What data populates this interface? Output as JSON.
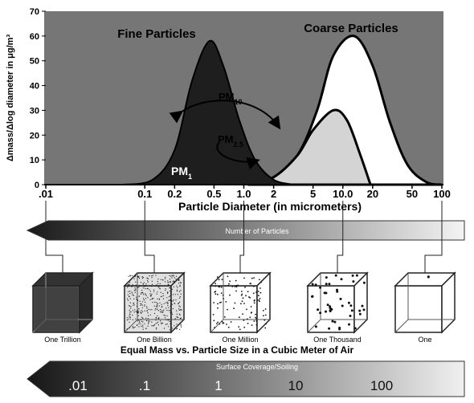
{
  "chart_data": {
    "type": "area",
    "ylabel": "Δmass/Δlog diameter in μg/m³",
    "xlabel": "Particle Diameter (in micrometers)",
    "x_scale": "log",
    "xlim": [
      0.01,
      100
    ],
    "ylim": [
      0,
      70
    ],
    "y_ticks": [
      "0",
      "10",
      "20",
      "30",
      "40",
      "50",
      "60",
      "70"
    ],
    "x_ticks": [
      {
        "v": 0.01,
        "label": ".01"
      },
      {
        "v": 0.1,
        "label": "0.1"
      },
      {
        "v": 0.2,
        "label": "0.2"
      },
      {
        "v": 0.5,
        "label": "0.5"
      },
      {
        "v": 1,
        "label": "1.0"
      },
      {
        "v": 2,
        "label": "2"
      },
      {
        "v": 5,
        "label": "5"
      },
      {
        "v": 10,
        "label": "10.0"
      },
      {
        "v": 20,
        "label": "20"
      },
      {
        "v": 50,
        "label": "50"
      },
      {
        "v": 100,
        "label": "100"
      }
    ],
    "series": [
      {
        "name": "Fine Particles",
        "peak_x": 0.45,
        "peak_y": 58
      },
      {
        "name": "Coarse Particles",
        "peak_x": 13,
        "peak_y": 60
      }
    ],
    "pm25_peak": {
      "x": 8,
      "y": 30
    },
    "annotations": {
      "pm10": {
        "main": "PM",
        "sub": "10"
      },
      "pm25": {
        "main": "PM",
        "sub": "2.5"
      },
      "pm1": {
        "main": "PM",
        "sub": "1"
      }
    },
    "colors": {
      "plot_bg": "#767676",
      "fine": "#1e1e1e",
      "pm25_fill": "#d8d8d8",
      "coarse": "#ffffff"
    }
  },
  "bars": {
    "number_label": "Number of Particles",
    "surface_label": "Surface Coverage/Soiling",
    "surface_values": [
      ".01",
      ".1",
      "1",
      "10",
      "100"
    ]
  },
  "cubes": {
    "caption": "Equal Mass vs. Particle Size in a Cubic Meter of Air",
    "items": [
      "One Trillion",
      "One Billion",
      "One Million",
      "One Thousand",
      "One"
    ]
  }
}
